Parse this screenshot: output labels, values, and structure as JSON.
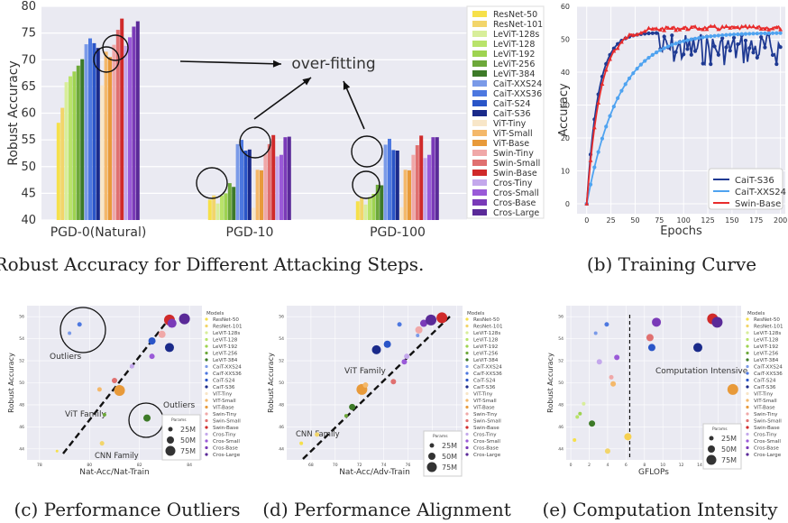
{
  "captions": {
    "a": "(a) Robust Accuracy for Different Attacking Steps.",
    "b": "(b) Training Curve",
    "c": "(c) Performance Outliers",
    "d": "(d) Performance Alignment",
    "e": "(e) Computation Intensity"
  },
  "chart_data": [
    {
      "panel": "a",
      "type": "bar",
      "ylabel": "Robust Accuracy",
      "ylim": [
        40,
        80
      ],
      "yticks": [
        40,
        45,
        50,
        55,
        60,
        65,
        70,
        75,
        80
      ],
      "categories": [
        "PGD-0(Natural)",
        "PGD-10",
        "PGD-100"
      ],
      "annotation": "over-fitting",
      "legend_position": "right",
      "series": [
        {
          "name": "ResNet-50",
          "color": "#f6e04a",
          "values": [
            58.2,
            43.8,
            43.5
          ]
        },
        {
          "name": "ResNet-101",
          "color": "#f2d56a",
          "values": [
            61.0,
            44.6,
            44.2
          ]
        },
        {
          "name": "LeViT-128s",
          "color": "#d8ee9a",
          "values": [
            65.8,
            43.1,
            42.9
          ]
        },
        {
          "name": "LeViT-128",
          "color": "#b9e36a",
          "values": [
            66.9,
            44.6,
            44.3
          ]
        },
        {
          "name": "LeViT-192",
          "color": "#9ed350",
          "values": [
            67.8,
            45.0,
            44.9
          ]
        },
        {
          "name": "LeViT-256",
          "color": "#6da83a",
          "values": [
            68.9,
            46.9,
            46.6
          ]
        },
        {
          "name": "LeViT-384",
          "color": "#3d7a28",
          "values": [
            70.1,
            46.2,
            46.5
          ]
        },
        {
          "name": "CaiT-XXS24",
          "color": "#7a9ae8",
          "values": [
            72.9,
            54.2,
            54.1
          ]
        },
        {
          "name": "CaiT-XXS36",
          "color": "#4d78e0",
          "values": [
            74.0,
            55.0,
            55.2
          ]
        },
        {
          "name": "CaiT-S24",
          "color": "#2a55c8",
          "values": [
            73.1,
            53.0,
            53.1
          ]
        },
        {
          "name": "CaiT-S36",
          "color": "#1a2a8a",
          "values": [
            72.2,
            53.2,
            53.0
          ]
        },
        {
          "name": "ViT-Tiny",
          "color": "#f8e6c8",
          "values": [
            65.2,
            42.3,
            42.4
          ]
        },
        {
          "name": "ViT-Small",
          "color": "#f4b86a",
          "values": [
            71.5,
            49.4,
            49.4
          ]
        },
        {
          "name": "ViT-Base",
          "color": "#e89a3a",
          "values": [
            70.5,
            49.3,
            49.3
          ]
        },
        {
          "name": "Swin-Tiny",
          "color": "#f0a8a8",
          "values": [
            72.8,
            52.3,
            52.2
          ]
        },
        {
          "name": "Swin-Small",
          "color": "#e07070",
          "values": [
            75.6,
            54.2,
            54.0
          ]
        },
        {
          "name": "Swin-Base",
          "color": "#d02a2a",
          "values": [
            77.7,
            55.9,
            55.8
          ]
        },
        {
          "name": "Cros-Tiny",
          "color": "#c4a8ec",
          "values": [
            72.6,
            51.9,
            51.6
          ]
        },
        {
          "name": "Cros-Small",
          "color": "#9a5ad8",
          "values": [
            74.2,
            52.2,
            52.2
          ]
        },
        {
          "name": "Cros-Base",
          "color": "#7a3ab8",
          "values": [
            76.2,
            55.5,
            55.5
          ]
        },
        {
          "name": "Cros-Large",
          "color": "#5a2a98",
          "values": [
            77.2,
            55.6,
            55.5
          ]
        }
      ]
    },
    {
      "panel": "b",
      "type": "line",
      "xlabel": "Epochs",
      "ylabel": "Accuracy",
      "xlim": [
        -10,
        205
      ],
      "ylim": [
        -3,
        60
      ],
      "xticks": [
        0,
        25,
        50,
        75,
        100,
        125,
        150,
        175,
        200
      ],
      "yticks": [
        0,
        10,
        20,
        30,
        40,
        50,
        60
      ],
      "grid": true,
      "legend_position": "bottom-right",
      "series": [
        {
          "name": "CaiT-S36",
          "color": "#1f3a93",
          "style": "curve",
          "plateau": 52,
          "rate": 0.085,
          "noise": 5,
          "noise_start": 75
        },
        {
          "name": "CaiT-XXS24",
          "color": "#4fa3f0",
          "style": "curve",
          "plateau": 52,
          "rate": 0.03,
          "noise": 0,
          "noise_start": 200
        },
        {
          "name": "Swin-Base",
          "color": "#e82c2c",
          "style": "curve",
          "plateau": 54,
          "rate": 0.07,
          "noise": 0.6,
          "noise_start": 30
        }
      ]
    },
    {
      "panel": "c",
      "type": "scatter",
      "xlabel": "Nat-Acc/Nat-Train",
      "ylabel": "Robust Accuracy",
      "xlim": [
        77.5,
        84.5
      ],
      "ylim": [
        43,
        57
      ],
      "xticks": [
        78,
        80,
        82,
        84
      ],
      "yticks": [
        44,
        46,
        48,
        50,
        52,
        54,
        56
      ],
      "annotations": [
        "Outliers",
        "Outliers",
        "ViT Family",
        "CNN Family"
      ],
      "points": [
        {
          "x": 78.7,
          "y": 43.8,
          "r": 1.5,
          "color": "#f6e04a"
        },
        {
          "x": 80.5,
          "y": 44.5,
          "r": 2.5,
          "color": "#f2d56a"
        },
        {
          "x": 79.2,
          "y": 54.5,
          "r": 2,
          "color": "#7a9ae8"
        },
        {
          "x": 79.6,
          "y": 55.3,
          "r": 2.5,
          "color": "#4d78e0"
        },
        {
          "x": 80.4,
          "y": 49.4,
          "r": 2.5,
          "color": "#f4b86a"
        },
        {
          "x": 81.2,
          "y": 49.3,
          "r": 6,
          "color": "#e89a3a"
        },
        {
          "x": 80.6,
          "y": 47.1,
          "r": 2,
          "color": "#6da83a"
        },
        {
          "x": 82.3,
          "y": 46.8,
          "r": 4,
          "color": "#3d7a28"
        },
        {
          "x": 81.7,
          "y": 51.5,
          "r": 2.5,
          "color": "#c4a8ec"
        },
        {
          "x": 82.5,
          "y": 52.4,
          "r": 3,
          "color": "#9a5ad8"
        },
        {
          "x": 83.2,
          "y": 53.2,
          "r": 5,
          "color": "#1a2a8a"
        },
        {
          "x": 82.5,
          "y": 53.8,
          "r": 4,
          "color": "#2a55c8"
        },
        {
          "x": 82.9,
          "y": 54.4,
          "r": 4,
          "color": "#f0a8a8"
        },
        {
          "x": 83.2,
          "y": 55.7,
          "r": 6,
          "color": "#d02a2a"
        },
        {
          "x": 83.8,
          "y": 55.8,
          "r": 6,
          "color": "#5a2a98"
        },
        {
          "x": 83.3,
          "y": 55.4,
          "r": 5,
          "color": "#7a3ab8"
        },
        {
          "x": 81.0,
          "y": 50.2,
          "r": 3,
          "color": "#e07070"
        }
      ]
    },
    {
      "panel": "d",
      "type": "scatter",
      "xlabel": "Nat-Acc/Adv-Train",
      "ylabel": "Robust Accuracy",
      "xlim": [
        66,
        80.5
      ],
      "ylim": [
        43,
        57
      ],
      "xticks": [
        68,
        70,
        72,
        74,
        76,
        78,
        80
      ],
      "yticks": [
        44,
        46,
        48,
        50,
        52,
        54,
        56
      ],
      "annotations": [
        "ViT Family",
        "CNN Family"
      ],
      "points": [
        {
          "x": 67.2,
          "y": 44.5,
          "r": 2,
          "color": "#f6e04a"
        },
        {
          "x": 68.5,
          "y": 45.3,
          "r": 2.5,
          "color": "#f2d56a"
        },
        {
          "x": 70.9,
          "y": 47.0,
          "r": 2,
          "color": "#6da83a"
        },
        {
          "x": 71.4,
          "y": 47.8,
          "r": 3.5,
          "color": "#3d7a28"
        },
        {
          "x": 72.2,
          "y": 49.4,
          "r": 6,
          "color": "#e89a3a"
        },
        {
          "x": 72.5,
          "y": 49.8,
          "r": 3,
          "color": "#f4b86a"
        },
        {
          "x": 74.8,
          "y": 50.1,
          "r": 3,
          "color": "#e07070"
        },
        {
          "x": 75.7,
          "y": 51.9,
          "r": 3,
          "color": "#9a5ad8"
        },
        {
          "x": 75.9,
          "y": 52.4,
          "r": 3,
          "color": "#c4a8ec"
        },
        {
          "x": 73.4,
          "y": 53.0,
          "r": 5,
          "color": "#1a2a8a"
        },
        {
          "x": 74.3,
          "y": 53.5,
          "r": 4,
          "color": "#2a55c8"
        },
        {
          "x": 76.9,
          "y": 54.8,
          "r": 4,
          "color": "#f0a8a8"
        },
        {
          "x": 75.3,
          "y": 55.3,
          "r": 2.5,
          "color": "#4d78e0"
        },
        {
          "x": 77.3,
          "y": 55.4,
          "r": 4,
          "color": "#7a3ab8"
        },
        {
          "x": 77.9,
          "y": 55.7,
          "r": 6,
          "color": "#5a2a98"
        },
        {
          "x": 78.8,
          "y": 55.9,
          "r": 6,
          "color": "#d02a2a"
        },
        {
          "x": 76.8,
          "y": 54.3,
          "r": 2,
          "color": "#7a9ae8"
        }
      ]
    },
    {
      "panel": "e",
      "type": "scatter",
      "xlabel": "GFLOPs",
      "ylabel": "Robust Accuracy",
      "xlim": [
        -0.5,
        18.5
      ],
      "ylim": [
        43,
        57
      ],
      "xticks": [
        0,
        2,
        4,
        6,
        8,
        10,
        12,
        14,
        16,
        18
      ],
      "yticks": [
        44,
        46,
        48,
        50,
        52,
        54,
        56
      ],
      "threshold_x": 6.4,
      "annotations": [
        "Computation Intensive"
      ],
      "points": [
        {
          "x": 0.4,
          "y": 44.8,
          "r": 2,
          "color": "#f6e04a"
        },
        {
          "x": 0.7,
          "y": 46.9,
          "r": 2,
          "color": "#b9e36a"
        },
        {
          "x": 1.0,
          "y": 47.2,
          "r": 2,
          "color": "#9ed350"
        },
        {
          "x": 1.4,
          "y": 48.1,
          "r": 2,
          "color": "#d8ee9a"
        },
        {
          "x": 2.3,
          "y": 46.3,
          "r": 3.5,
          "color": "#3d7a28"
        },
        {
          "x": 4.0,
          "y": 43.8,
          "r": 3,
          "color": "#f2d56a"
        },
        {
          "x": 4.4,
          "y": 50.5,
          "r": 2.5,
          "color": "#f0a8a8"
        },
        {
          "x": 4.6,
          "y": 49.9,
          "r": 3,
          "color": "#f4b86a"
        },
        {
          "x": 2.7,
          "y": 54.5,
          "r": 2,
          "color": "#7a9ae8"
        },
        {
          "x": 3.9,
          "y": 55.3,
          "r": 2.5,
          "color": "#4d78e0"
        },
        {
          "x": 3.1,
          "y": 51.9,
          "r": 3,
          "color": "#c4a8ec"
        },
        {
          "x": 5.0,
          "y": 52.3,
          "r": 3,
          "color": "#9a5ad8"
        },
        {
          "x": 6.2,
          "y": 45.1,
          "r": 4,
          "color": "#f6d050"
        },
        {
          "x": 8.6,
          "y": 54.1,
          "r": 4,
          "color": "#e07070"
        },
        {
          "x": 8.8,
          "y": 53.2,
          "r": 4,
          "color": "#2a55c8"
        },
        {
          "x": 9.3,
          "y": 55.5,
          "r": 5,
          "color": "#7a3ab8"
        },
        {
          "x": 13.8,
          "y": 53.2,
          "r": 5,
          "color": "#1a2a8a"
        },
        {
          "x": 15.4,
          "y": 55.8,
          "r": 6,
          "color": "#d02a2a"
        },
        {
          "x": 15.9,
          "y": 55.5,
          "r": 6,
          "color": "#5a2a98"
        },
        {
          "x": 17.6,
          "y": 49.4,
          "r": 6,
          "color": "#e89a3a"
        }
      ]
    }
  ],
  "small_legend": {
    "title": "Models",
    "entries": [
      "ResNet-50",
      "ResNet-101",
      "LeViT-128s",
      "LeViT-128",
      "LeViT-192",
      "LeViT-256",
      "LeViT-384",
      "CaiT-XXS24",
      "CaiT-XXS36",
      "CaiT-S24",
      "CaiT-S36",
      "ViT-Tiny",
      "ViT-Small",
      "ViT-Base",
      "Swin-Tiny",
      "Swin-Small",
      "Swin-Base",
      "Cros-Tiny",
      "Cros-Small",
      "Cros-Base",
      "Cros-Large"
    ]
  },
  "size_legend": {
    "title": "Params",
    "entries": [
      "25M",
      "50M",
      "75M"
    ]
  }
}
